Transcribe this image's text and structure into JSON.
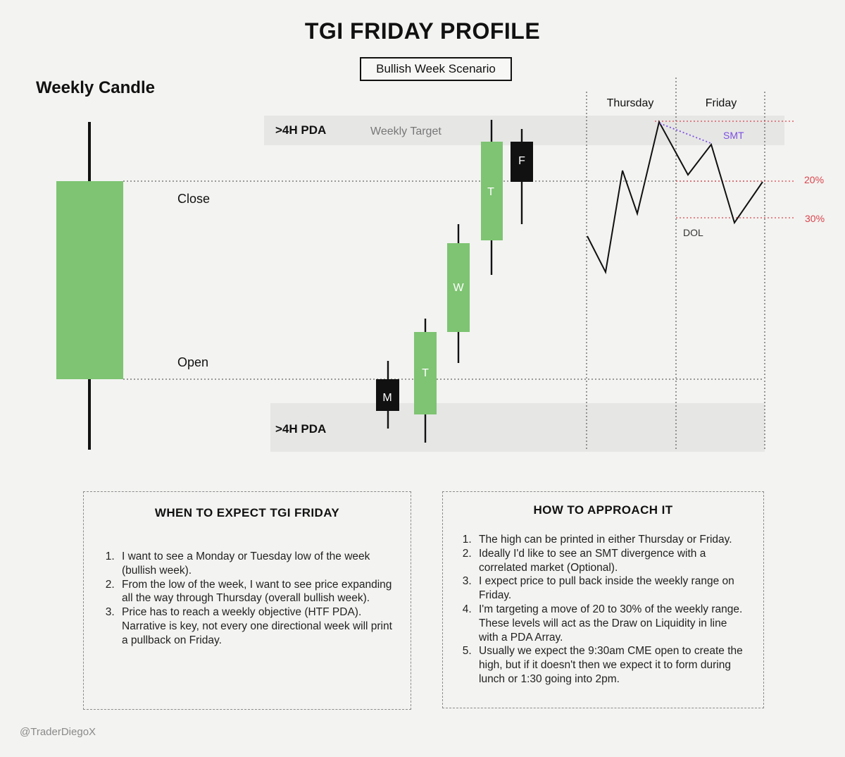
{
  "title": "TGI FRIDAY PROFILE",
  "scenario": "Bullish Week Scenario",
  "weekly_candle": {
    "heading": "Weekly Candle",
    "close_label": "Close",
    "open_label": "Open"
  },
  "zones": {
    "upper_label": ">4H PDA",
    "upper_sublabel": "Weekly Target",
    "lower_label": ">4H PDA"
  },
  "days": [
    {
      "label": "M",
      "direction": "bearish"
    },
    {
      "label": "T",
      "direction": "bullish"
    },
    {
      "label": "W",
      "direction": "bullish"
    },
    {
      "label": "T",
      "direction": "bullish"
    },
    {
      "label": "F",
      "direction": "bearish"
    }
  ],
  "intraday": {
    "thursday_label": "Thursday",
    "friday_label": "Friday",
    "smt_label": "SMT",
    "dol_label": "DOL",
    "level_20": "20%",
    "level_30": "30%"
  },
  "colors": {
    "bullish": "#7ec472",
    "bearish": "#111111",
    "level_line": "#d9444c",
    "smt": "#7b4fe0",
    "zone": "#e6e6e5"
  },
  "when_box": {
    "title": "WHEN TO EXPECT TGI FRIDAY",
    "items": [
      "I want to see a Monday or Tuesday low of the week (bullish week).",
      "From the low of the week, I want to see price expanding all the way through Thursday (overall bullish week).",
      "Price has to reach a weekly objective (HTF PDA). Narrative is key, not every one directional week will print a pullback on Friday."
    ]
  },
  "how_box": {
    "title": "HOW TO APPROACH IT",
    "items": [
      "The high can be printed in either Thursday or Friday.",
      "Ideally I'd like to see an SMT divergence with a correlated market (Optional).",
      "I expect price to pull back inside the weekly range on Friday.",
      "I'm targeting a move of 20 to 30% of the weekly range. These levels will act as the Draw on Liquidity in line with a PDA Array.",
      "Usually we expect the 9:30am CME open to create the high, but if it doesn't then we expect it to form during lunch or 1:30 going into 2pm."
    ]
  },
  "credit": "@TraderDiegoX"
}
